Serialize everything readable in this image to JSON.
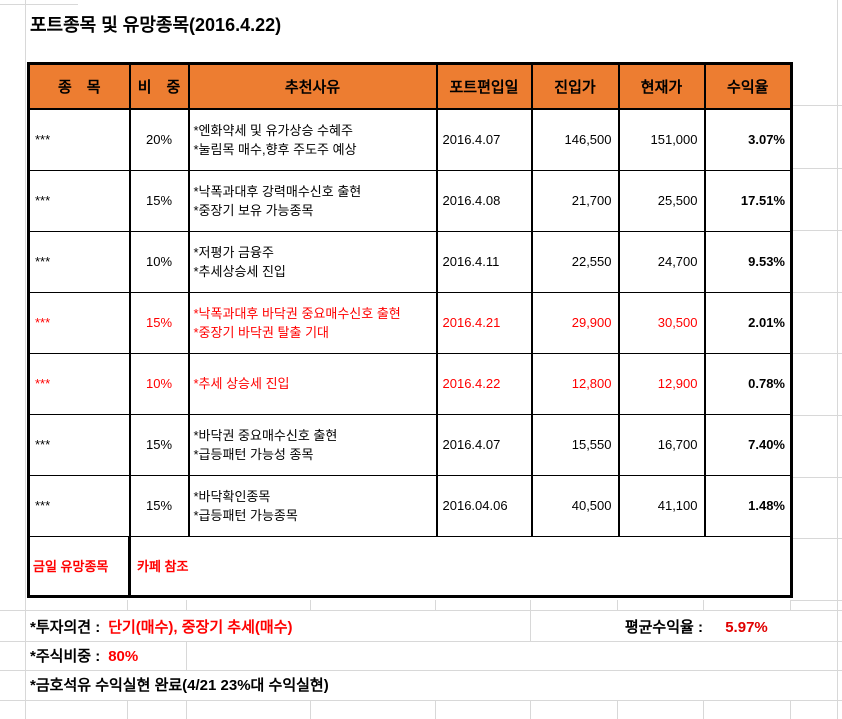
{
  "title": "포트종목 및 유망종목(2016.4.22)",
  "table": {
    "headers": [
      "종　목",
      "비　중",
      "추천사유",
      "포트편입일",
      "진입가",
      "현재가",
      "수익율"
    ],
    "rows": [
      {
        "stock": "***",
        "weight": "20%",
        "reason1": "*엔화약세 및 유가상승 수혜주",
        "reason2": "*눌림목 매수,향후 주도주 예상",
        "date": "2016.4.07",
        "entry": "146,500",
        "current": "151,000",
        "return_rate": "3.07%"
      },
      {
        "stock": "***",
        "weight": "15%",
        "reason1": "*낙폭과대후 강력매수신호 출현",
        "reason2": "*중장기 보유 가능종목",
        "date": "2016.4.08",
        "entry": "21,700",
        "current": "25,500",
        "return_rate": "17.51%"
      },
      {
        "stock": "***",
        "weight": "10%",
        "reason1": "*저평가 금융주",
        "reason2": "*추세상승세 진입",
        "date": "2016.4.11",
        "entry": "22,550",
        "current": "24,700",
        "return_rate": "9.53%"
      },
      {
        "stock": "***",
        "weight": "15%",
        "reason1": "*낙폭과대후 바닥권 중요매수신호 출현",
        "reason2": "*중장기 바닥권 탈출 기대",
        "date": "2016.4.21",
        "entry": "29,900",
        "current": "30,500",
        "return_rate": "2.01%"
      },
      {
        "stock": "***",
        "weight": "10%",
        "reason1": "*추세 상승세 진입",
        "date": "2016.4.22",
        "entry": "12,800",
        "current": "12,900",
        "return_rate": "0.78%"
      },
      {
        "stock": "***",
        "weight": "15%",
        "reason1": "*바닥권 중요매수신호 출현",
        "reason2": "*급등패턴 가능성 종목",
        "date": "2016.4.07",
        "entry": "15,550",
        "current": "16,700",
        "return_rate": "7.40%"
      },
      {
        "stock": "***",
        "weight": "15%",
        "reason1": "*바닥확인종목",
        "reason2": "*급등패턴 가능종목",
        "date": "2016.04.06",
        "entry": "40,500",
        "current": "41,100",
        "return_rate": "1.48%"
      }
    ],
    "footer_row": {
      "label": "금일 유망종목",
      "value": "카페 참조"
    }
  },
  "summary": {
    "opinion_label": "*투자의견 :",
    "opinion_value": "단기(매수), 중장기 추세(매수)",
    "ratio_label": "*주식비중 :",
    "ratio_value": "80%",
    "note": "*금호석유 수익실현 완료(4/21 23%대 수익실현)",
    "avg_label": "평균수익율 :",
    "avg_value": "5.97%"
  },
  "colors": {
    "header_bg": "#ED7D31",
    "highlight_red": "#FF0000",
    "avg_value_red": "#E00000",
    "grid_line": "#D8D8D8",
    "table_border": "#000000"
  }
}
